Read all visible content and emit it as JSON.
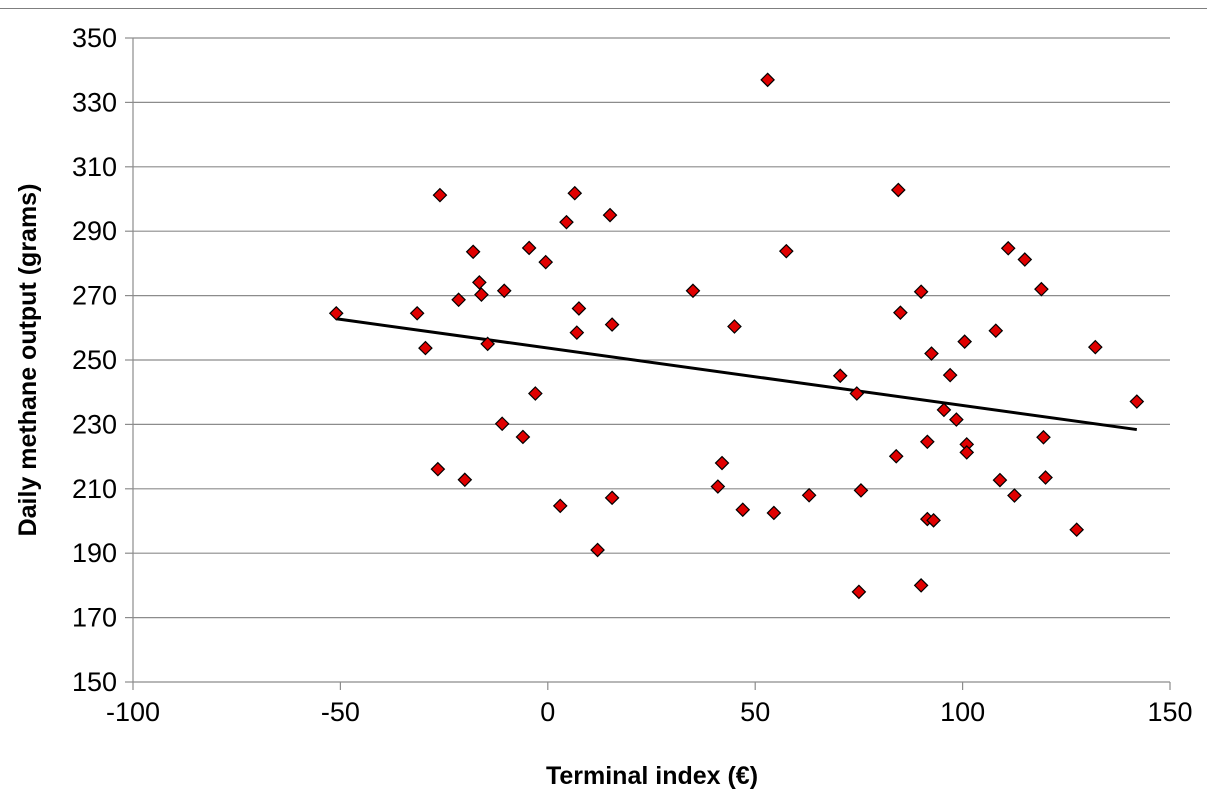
{
  "chart_data": {
    "type": "scatter",
    "title": "",
    "xlabel": "Terminal index (€)",
    "ylabel": "Daily methane output (grams)",
    "xlim": [
      -100,
      150
    ],
    "ylim": [
      150,
      350
    ],
    "x_ticks": [
      -100,
      -50,
      0,
      50,
      100,
      150
    ],
    "y_ticks": [
      150,
      170,
      190,
      210,
      230,
      250,
      270,
      290,
      310,
      330,
      350
    ],
    "grid": "horizontal",
    "marker": "diamond",
    "marker_color": "#e00000",
    "marker_edge_color": "#000000",
    "trendline_color": "#000000",
    "trendline": {
      "x": [
        -51,
        142
      ],
      "y": [
        262.8,
        228.4
      ]
    },
    "series": [
      {
        "points": [
          [
            -51,
            264.5
          ],
          [
            -31.5,
            264.5
          ],
          [
            -29.5,
            253.7
          ],
          [
            -26.5,
            216.1
          ],
          [
            -26,
            301.2
          ],
          [
            -21.5,
            268.7
          ],
          [
            -20,
            212.8
          ],
          [
            -18,
            283.6
          ],
          [
            -16.5,
            274.1
          ],
          [
            -16,
            270.3
          ],
          [
            -14.5,
            255
          ],
          [
            -11,
            230.2
          ],
          [
            -10.5,
            271.5
          ],
          [
            -6,
            226.1
          ],
          [
            -4.5,
            284.8
          ],
          [
            -3,
            239.6
          ],
          [
            -0.5,
            280.4
          ],
          [
            3,
            204.7
          ],
          [
            4.5,
            292.8
          ],
          [
            6.5,
            301.8
          ],
          [
            7,
            258.5
          ],
          [
            7.5,
            266
          ],
          [
            12,
            191
          ],
          [
            15,
            295
          ],
          [
            15.5,
            261
          ],
          [
            15.5,
            207.2
          ],
          [
            35,
            271.5
          ],
          [
            41,
            210.7
          ],
          [
            42,
            218
          ],
          [
            45,
            260.4
          ],
          [
            47,
            203.5
          ],
          [
            53,
            337
          ],
          [
            54.5,
            202.5
          ],
          [
            57.5,
            283.8
          ],
          [
            63,
            208
          ],
          [
            70.5,
            245.1
          ],
          [
            74.5,
            239.6
          ],
          [
            75,
            178
          ],
          [
            75.5,
            209.5
          ],
          [
            84,
            220.1
          ],
          [
            84.5,
            302.8
          ],
          [
            85,
            264.7
          ],
          [
            90,
            271.2
          ],
          [
            90,
            180
          ],
          [
            91.5,
            224.6
          ],
          [
            91.5,
            200.6
          ],
          [
            92.5,
            252
          ],
          [
            93,
            200.2
          ],
          [
            95.5,
            234.5
          ],
          [
            97,
            245.3
          ],
          [
            98.5,
            231.5
          ],
          [
            100.5,
            255.7
          ],
          [
            101,
            223.8
          ],
          [
            101,
            221.3
          ],
          [
            108,
            259.1
          ],
          [
            109,
            212.7
          ],
          [
            111,
            284.7
          ],
          [
            112.5,
            207.9
          ],
          [
            115,
            281.2
          ],
          [
            119,
            272
          ],
          [
            119.5,
            226
          ],
          [
            120,
            213.5
          ],
          [
            127.5,
            197.3
          ],
          [
            132,
            254
          ],
          [
            142,
            237.1
          ]
        ]
      }
    ]
  }
}
